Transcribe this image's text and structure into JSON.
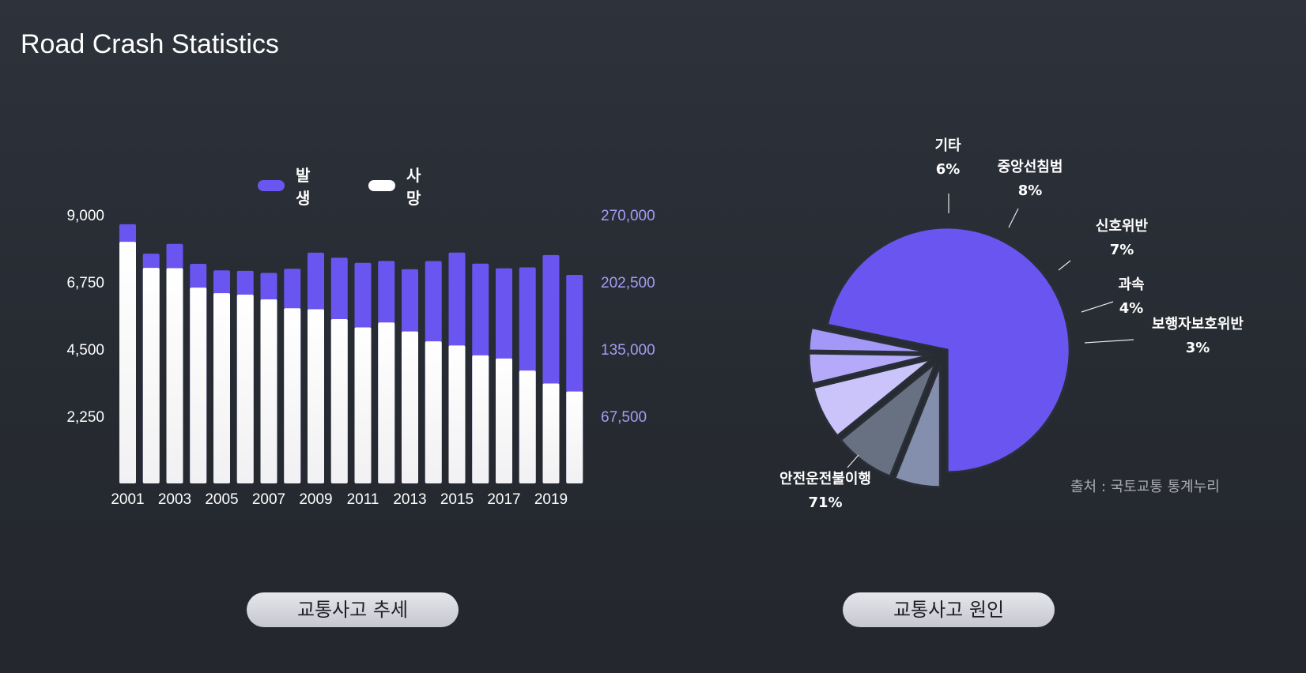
{
  "page": {
    "title": "Road Crash Statistics",
    "source": "출처 : 국토교통 통계누리",
    "buttons": {
      "trend": "교통사고 추세",
      "cause": "교통사고 원인"
    }
  },
  "colors": {
    "occurrence": "#6a55f0",
    "deaths": "#ffffff",
    "right_axis": "#a99bf4",
    "left_axis": "#ffffff"
  },
  "chart_data": [
    {
      "type": "bar",
      "legend": {
        "placement": "top",
        "items": [
          "발생",
          "사망"
        ]
      },
      "categories": [
        "2001",
        "2002",
        "2003",
        "2004",
        "2005",
        "2006",
        "2007",
        "2008",
        "2009",
        "2010",
        "2011",
        "2012",
        "2013",
        "2014",
        "2015",
        "2016",
        "2017",
        "2018",
        "2019",
        "2020"
      ],
      "x_tick_labels": [
        "2001",
        "2003",
        "2005",
        "2007",
        "2009",
        "2011",
        "2013",
        "2015",
        "2017",
        "2019"
      ],
      "series": [
        {
          "name": "발생",
          "axis": "right",
          "values": [
            260579,
            231026,
            240832,
            220755,
            214171,
            213745,
            211662,
            215822,
            231990,
            226878,
            221711,
            223656,
            215354,
            223552,
            232035,
            220917,
            216335,
            217148,
            229600,
            209654
          ]
        },
        {
          "name": "사망",
          "axis": "left",
          "values": [
            8097,
            7222,
            7212,
            6563,
            6376,
            6327,
            6166,
            5870,
            5838,
            5505,
            5229,
            5392,
            5092,
            4762,
            4621,
            4292,
            4185,
            3781,
            3349,
            3081
          ]
        }
      ],
      "y_left": {
        "ticks": [
          "2,250",
          "4,500",
          "6,750",
          "9,000"
        ],
        "range": [
          0,
          9000
        ]
      },
      "y_right": {
        "ticks": [
          "67,500",
          "135,000",
          "202,500",
          "270,000"
        ],
        "range": [
          0,
          270000
        ]
      },
      "grid": false
    },
    {
      "type": "pie",
      "slices": [
        {
          "label": "안전운전불이행",
          "value": 71,
          "display": "71%",
          "color": "#6a55f0"
        },
        {
          "label": "보행자보호위반",
          "value": 3,
          "display": "3%",
          "color": "#a397f7"
        },
        {
          "label": "과속",
          "value": 4,
          "display": "4%",
          "color": "#b4aaf9"
        },
        {
          "label": "신호위반",
          "value": 7,
          "display": "7%",
          "color": "#cbc4fb"
        },
        {
          "label": "중앙선침범",
          "value": 8,
          "display": "8%",
          "color": "#687182"
        },
        {
          "label": "기타",
          "value": 6,
          "display": "6%",
          "color": "#848ead"
        }
      ]
    }
  ]
}
